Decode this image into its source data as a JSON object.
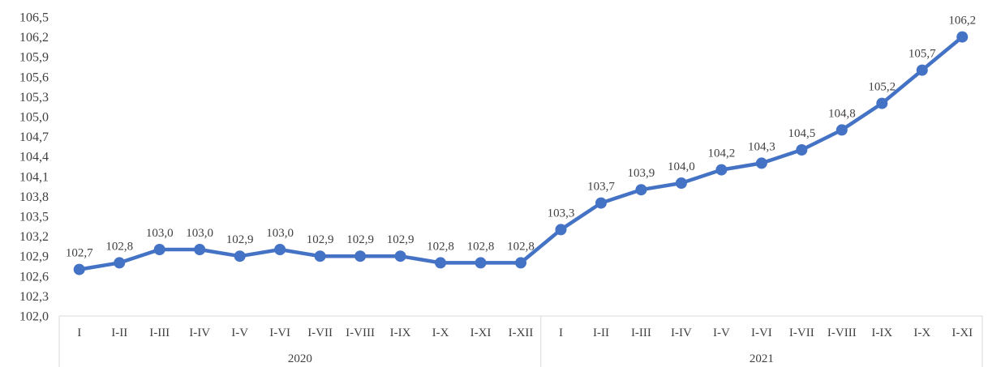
{
  "chart_data": {
    "type": "line",
    "title": "",
    "xlabel": "",
    "ylabel": "",
    "ylim": [
      102.0,
      106.5
    ],
    "yticks": [
      "102,0",
      "102,3",
      "102,6",
      "102,9",
      "103,2",
      "103,5",
      "103,8",
      "104,1",
      "104,4",
      "104,7",
      "105,0",
      "105,3",
      "105,6",
      "105,9",
      "106,2",
      "106,5"
    ],
    "grid": false,
    "legend": "none",
    "groups": [
      {
        "label": "2020",
        "count": 12
      },
      {
        "label": "2021",
        "count": 11
      }
    ],
    "categories": [
      "I",
      "I-II",
      "I-III",
      "I-IV",
      "I-V",
      "I-VI",
      "I-VII",
      "I-VIII",
      "I-IX",
      "I-X",
      "I-XI",
      "I-XII",
      "I",
      "I-II",
      "I-III",
      "I-IV",
      "I-V",
      "I-VI",
      "I-VII",
      "I-VIII",
      "I-IX",
      "I-X",
      "I-XI"
    ],
    "series": [
      {
        "values": [
          102.7,
          102.8,
          103.0,
          103.0,
          102.9,
          103.0,
          102.9,
          102.9,
          102.9,
          102.8,
          102.8,
          102.8,
          103.3,
          103.7,
          103.9,
          104.0,
          104.2,
          104.3,
          104.5,
          104.8,
          105.2,
          105.7,
          106.2
        ],
        "labels": [
          "102,7",
          "102,8",
          "103,0",
          "103,0",
          "102,9",
          "103,0",
          "102,9",
          "102,9",
          "102,9",
          "102,8",
          "102,8",
          "102,8",
          "103,3",
          "103,7",
          "103,9",
          "104,0",
          "104,2",
          "104,3",
          "104,5",
          "104,8",
          "105,2",
          "105,7",
          "106,2"
        ],
        "color": "#4472C4"
      }
    ]
  }
}
